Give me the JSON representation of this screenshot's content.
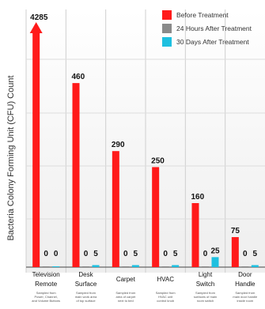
{
  "chart_data": {
    "type": "bar",
    "ylabel": "Bacteria Colony Forming Unit (CFU) Count",
    "categories": [
      {
        "lines": [
          "Television",
          "Remote"
        ],
        "sub": [
          "Sampled from",
          "Power, Channel,",
          "and Volume Buttons"
        ]
      },
      {
        "lines": [
          "Desk",
          "Surface"
        ],
        "sub": [
          "Sampled from",
          "main work area",
          "of top surface"
        ]
      },
      {
        "lines": [
          "Carpet"
        ],
        "sub": [
          "Sampled from",
          "area of carpet",
          "next to bed"
        ]
      },
      {
        "lines": [
          "HVAC"
        ],
        "sub": [
          "Sampled from",
          "HVAC unit",
          "control knob"
        ]
      },
      {
        "lines": [
          "Light",
          "Switch"
        ],
        "sub": [
          "Sampled from",
          "surfaces of main",
          "room switch"
        ]
      },
      {
        "lines": [
          "Door",
          "Handle"
        ],
        "sub": [
          "Sampled from",
          "main door handle",
          "inside room"
        ]
      }
    ],
    "series": [
      {
        "name": "Before Treatment",
        "color": "#ff1a1a",
        "values": [
          4285,
          460,
          290,
          250,
          160,
          75
        ]
      },
      {
        "name": "24 Hours After Treatment",
        "color": "#8a8a8a",
        "values": [
          0,
          0,
          0,
          0,
          0,
          0
        ]
      },
      {
        "name": "30 Days After Treatment",
        "color": "#1ec0e0",
        "values": [
          0,
          5,
          5,
          5,
          25,
          5
        ]
      }
    ],
    "legend_position": "top-right",
    "grid": true
  }
}
